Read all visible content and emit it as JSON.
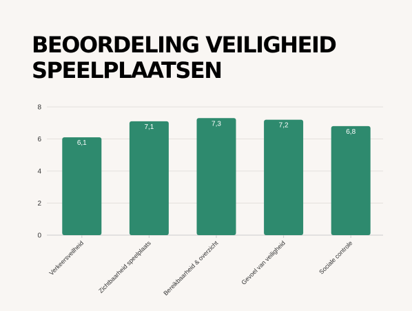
{
  "chart_data": {
    "type": "bar",
    "title": "BEOORDELING VEILIGHEID SPEELPLAATSEN",
    "categories": [
      "Verkeersveilheid",
      "Zichtbaarheid speelplaats",
      "Bereikbaarheid & overzicht",
      "Gevoel van veiligheid",
      "Sociale controle"
    ],
    "values": [
      6.1,
      7.1,
      7.3,
      7.2,
      6.8
    ],
    "data_labels": [
      "6,1",
      "7,1",
      "7,3",
      "7,2",
      "6,8"
    ],
    "ylim": [
      0,
      8
    ],
    "yticks": [
      0,
      2,
      4,
      6,
      8
    ],
    "grid": true,
    "colors": {
      "bar": "#2e8a6e",
      "grid": "#e4e0dc",
      "axis": "#cccccc"
    }
  }
}
